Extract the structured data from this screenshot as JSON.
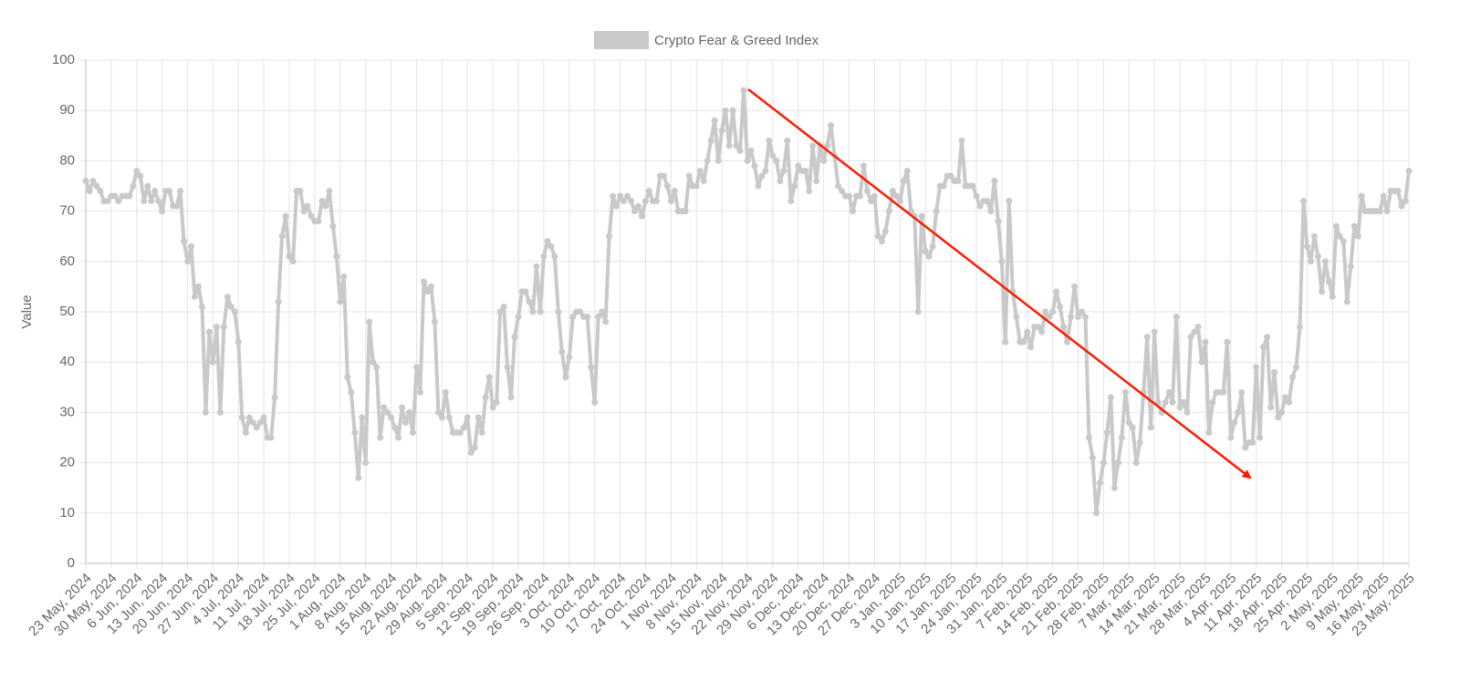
{
  "chart_data": {
    "type": "line",
    "y_label": "Value",
    "categories": [
      "23 May, 2024",
      null,
      null,
      null,
      null,
      null,
      null,
      "30 May, 2024",
      null,
      null,
      null,
      null,
      null,
      null,
      "6 Jun, 2024",
      null,
      null,
      null,
      null,
      null,
      null,
      "13 Jun, 2024",
      null,
      null,
      null,
      null,
      null,
      null,
      "20 Jun, 2024",
      null,
      null,
      null,
      null,
      null,
      null,
      "27 Jun, 2024",
      null,
      null,
      null,
      null,
      null,
      null,
      "4 Jul, 2024",
      null,
      null,
      null,
      null,
      null,
      null,
      "11 Jul, 2024",
      null,
      null,
      null,
      null,
      null,
      null,
      "18 Jul, 2024",
      null,
      null,
      null,
      null,
      null,
      null,
      "25 Jul, 2024",
      null,
      null,
      null,
      null,
      null,
      null,
      "1 Aug, 2024",
      null,
      null,
      null,
      null,
      null,
      null,
      "8 Aug, 2024",
      null,
      null,
      null,
      null,
      null,
      null,
      "15 Aug, 2024",
      null,
      null,
      null,
      null,
      null,
      null,
      "22 Aug, 2024",
      null,
      null,
      null,
      null,
      null,
      null,
      "29 Aug, 2024",
      null,
      null,
      null,
      null,
      null,
      null,
      "5 Sep, 2024",
      null,
      null,
      null,
      null,
      null,
      null,
      "12 Sep, 2024",
      null,
      null,
      null,
      null,
      null,
      null,
      "19 Sep, 2024",
      null,
      null,
      null,
      null,
      null,
      null,
      "26 Sep, 2024",
      null,
      null,
      null,
      null,
      null,
      null,
      "3 Oct, 2024",
      null,
      null,
      null,
      null,
      null,
      null,
      "10 Oct, 2024",
      null,
      null,
      null,
      null,
      null,
      null,
      "17 Oct, 2024",
      null,
      null,
      null,
      null,
      null,
      null,
      "24 Oct, 2024",
      null,
      null,
      null,
      null,
      null,
      null,
      "1 Nov, 2024",
      null,
      null,
      null,
      null,
      null,
      null,
      "8 Nov, 2024",
      null,
      null,
      null,
      null,
      null,
      null,
      "15 Nov, 2024",
      null,
      null,
      null,
      null,
      null,
      null,
      "22 Nov, 2024",
      null,
      null,
      null,
      null,
      null,
      null,
      "29 Nov, 2024",
      null,
      null,
      null,
      null,
      null,
      null,
      "6 Dec, 2024",
      null,
      null,
      null,
      null,
      null,
      null,
      "13 Dec, 2024",
      null,
      null,
      null,
      null,
      null,
      null,
      "20 Dec, 2024",
      null,
      null,
      null,
      null,
      null,
      null,
      "27 Dec, 2024",
      null,
      null,
      null,
      null,
      null,
      null,
      "3 Jan, 2025",
      null,
      null,
      null,
      null,
      null,
      null,
      "10 Jan, 2025",
      null,
      null,
      null,
      null,
      null,
      null,
      "17 Jan, 2025",
      null,
      null,
      null,
      null,
      null,
      null,
      "24 Jan, 2025",
      null,
      null,
      null,
      null,
      null,
      null,
      "31 Jan, 2025",
      null,
      null,
      null,
      null,
      null,
      null,
      "7 Feb, 2025",
      null,
      null,
      null,
      null,
      null,
      null,
      "14 Feb, 2025",
      null,
      null,
      null,
      null,
      null,
      null,
      "21 Feb, 2025",
      null,
      null,
      null,
      null,
      null,
      null,
      "28 Feb, 2025",
      null,
      null,
      null,
      null,
      null,
      null,
      "7 Mar, 2025",
      null,
      null,
      null,
      null,
      null,
      null,
      "14 Mar, 2025",
      null,
      null,
      null,
      null,
      null,
      null,
      "21 Mar, 2025",
      null,
      null,
      null,
      null,
      null,
      null,
      "28 Mar, 2025",
      null,
      null,
      null,
      null,
      null,
      null,
      "4 Apr, 2025",
      null,
      null,
      null,
      null,
      null,
      null,
      "11 Apr, 2025",
      null,
      null,
      null,
      null,
      null,
      null,
      "18 Apr, 2025",
      null,
      null,
      null,
      null,
      null,
      null,
      "25 Apr, 2025",
      null,
      null,
      null,
      null,
      null,
      null,
      "2 May, 2025",
      null,
      null,
      null,
      null,
      null,
      null,
      "9 May, 2025",
      null,
      null,
      null,
      null,
      null,
      null,
      "16 May, 2025",
      null,
      null,
      null,
      null,
      null,
      null,
      "23 May, 2025"
    ],
    "series": [
      {
        "name": "Crypto Fear & Greed Index",
        "color": "#c9c9c9",
        "values": [
          76,
          74,
          76,
          75,
          74,
          72,
          72,
          73,
          73,
          72,
          73,
          73,
          73,
          75,
          78,
          77,
          72,
          75,
          72,
          74,
          72,
          70,
          74,
          74,
          71,
          71,
          74,
          64,
          60,
          63,
          53,
          55,
          51,
          30,
          46,
          40,
          47,
          30,
          47,
          53,
          51,
          50,
          44,
          29,
          26,
          29,
          28,
          27,
          28,
          29,
          25,
          25,
          33,
          52,
          65,
          69,
          61,
          60,
          74,
          74,
          70,
          71,
          69,
          68,
          68,
          72,
          71,
          74,
          67,
          61,
          52,
          57,
          37,
          34,
          26,
          17,
          29,
          20,
          48,
          40,
          39,
          25,
          31,
          30,
          29,
          27,
          25,
          31,
          28,
          30,
          26,
          39,
          34,
          56,
          54,
          55,
          48,
          30,
          29,
          34,
          29,
          26,
          26,
          26,
          27,
          29,
          22,
          23,
          29,
          26,
          33,
          37,
          31,
          32,
          50,
          51,
          39,
          33,
          45,
          49,
          54,
          54,
          52,
          50,
          59,
          50,
          61,
          64,
          63,
          61,
          50,
          42,
          37,
          41,
          49,
          50,
          50,
          49,
          49,
          39,
          32,
          49,
          50,
          48,
          65,
          73,
          71,
          73,
          72,
          73,
          72,
          70,
          71,
          69,
          72,
          74,
          72,
          72,
          77,
          77,
          75,
          72,
          74,
          70,
          70,
          70,
          77,
          75,
          75,
          78,
          76,
          80,
          84,
          88,
          80,
          86,
          90,
          83,
          90,
          83,
          82,
          94,
          80,
          82,
          79,
          75,
          77,
          78,
          84,
          81,
          80,
          76,
          78,
          84,
          72,
          75,
          79,
          78,
          78,
          74,
          83,
          76,
          83,
          80,
          83,
          87,
          81,
          75,
          74,
          73,
          73,
          70,
          73,
          73,
          79,
          74,
          72,
          73,
          65,
          64,
          66,
          70,
          74,
          73,
          72,
          76,
          78,
          70,
          69,
          50,
          69,
          62,
          61,
          63,
          70,
          75,
          75,
          77,
          77,
          76,
          76,
          84,
          75,
          75,
          75,
          73,
          71,
          72,
          72,
          70,
          76,
          68,
          60,
          44,
          72,
          54,
          49,
          44,
          44,
          46,
          43,
          47,
          47,
          46,
          50,
          49,
          50,
          54,
          51,
          47,
          44,
          49,
          55,
          49,
          50,
          49,
          25,
          21,
          10,
          16,
          20,
          26,
          33,
          15,
          20,
          25,
          34,
          28,
          27,
          20,
          24,
          34,
          45,
          27,
          46,
          32,
          30,
          32,
          34,
          32,
          49,
          31,
          32,
          30,
          45,
          46,
          47,
          40,
          44,
          26,
          32,
          34,
          34,
          34,
          44,
          25,
          28,
          30,
          34,
          23,
          24,
          24,
          39,
          25,
          43,
          45,
          31,
          38,
          29,
          30,
          33,
          32,
          37,
          39,
          47,
          72,
          63,
          60,
          65,
          61,
          54,
          60,
          56,
          53,
          67,
          65,
          64,
          52,
          59,
          67,
          65,
          73,
          70,
          70,
          70,
          70,
          70,
          73,
          70,
          74,
          74,
          74,
          71,
          72,
          78
        ]
      }
    ],
    "ylim": [
      0,
      100
    ],
    "yticks": [
      0,
      10,
      20,
      30,
      40,
      50,
      60,
      70,
      80,
      90,
      100
    ],
    "grid": true,
    "legend": "top"
  }
}
